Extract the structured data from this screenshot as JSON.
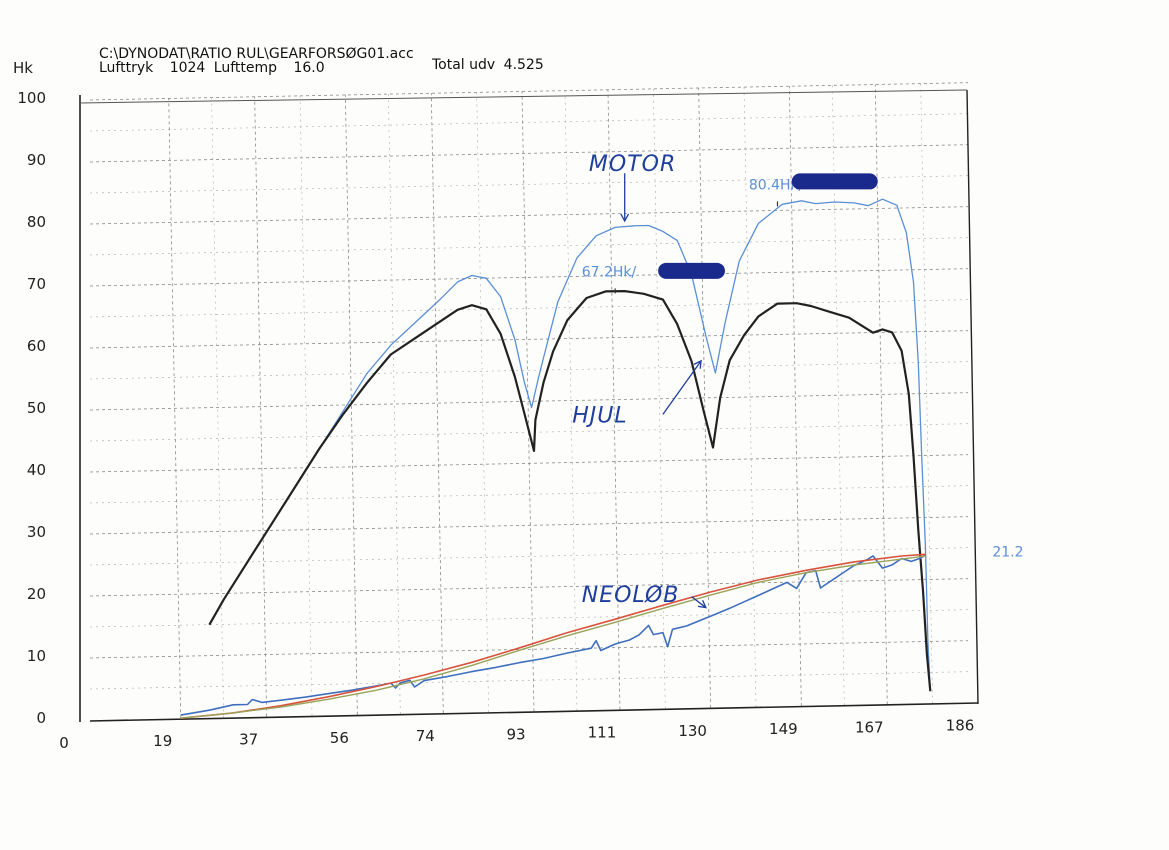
{
  "header": {
    "file_path": "C:\\DYNODAT\\RATIO RUL\\GEARFORSØG01.acc",
    "lufttryk_label": "Lufttryk",
    "lufttryk_value": "1024",
    "lufttemp_label": "Lufttemp",
    "lufttemp_value": "16.0",
    "total_udv_label": "Total udv",
    "total_udv_value": "4.525"
  },
  "chart_data": {
    "type": "line",
    "title": "",
    "xlabel": "",
    "ylabel": "Hk",
    "xlim": [
      0,
      186
    ],
    "ylim": [
      0,
      100
    ],
    "x_ticks": [
      "0",
      "19",
      "37",
      "56",
      "74",
      "93",
      "111",
      "130",
      "149",
      "167",
      "186"
    ],
    "y_ticks": [
      "0",
      "10",
      "20",
      "30",
      "40",
      "50",
      "60",
      "70",
      "80",
      "90",
      "100"
    ],
    "grid": true,
    "colors": {
      "motor": "#5b8fd6",
      "hjul": "#222222",
      "loss": "#3f6fbf",
      "smooth_red": "#d9533c",
      "smooth_olive": "#9aa35a",
      "handwriting": "#1f3f9e",
      "redaction": "#1a2a8c"
    },
    "series": [
      {
        "id": "motor",
        "points": [
          [
            25,
            15
          ],
          [
            28,
            19
          ],
          [
            33,
            25
          ],
          [
            38,
            31
          ],
          [
            43,
            37
          ],
          [
            48,
            43
          ],
          [
            53,
            49
          ],
          [
            58,
            55
          ],
          [
            63,
            59.5
          ],
          [
            68,
            63
          ],
          [
            73,
            66.5
          ],
          [
            77,
            69.5
          ],
          [
            80,
            70.5
          ],
          [
            83,
            70
          ],
          [
            86,
            67
          ],
          [
            89,
            60
          ],
          [
            91,
            53
          ],
          [
            92.5,
            49
          ],
          [
            94,
            54
          ],
          [
            96,
            60
          ],
          [
            98,
            66
          ],
          [
            102,
            73
          ],
          [
            106,
            76.5
          ],
          [
            110,
            77.8
          ],
          [
            114,
            78
          ],
          [
            117,
            78
          ],
          [
            120,
            77
          ],
          [
            123,
            75.5
          ],
          [
            126,
            70
          ],
          [
            129,
            60
          ],
          [
            131,
            54
          ],
          [
            133,
            62
          ],
          [
            136,
            72
          ],
          [
            140,
            78
          ],
          [
            145,
            81
          ],
          [
            149,
            81.5
          ],
          [
            152,
            81
          ],
          [
            156,
            81.2
          ],
          [
            160,
            81
          ],
          [
            163,
            80.5
          ],
          [
            166,
            81.5
          ],
          [
            169,
            80.5
          ],
          [
            171,
            76
          ],
          [
            172.5,
            68
          ],
          [
            173.5,
            55
          ],
          [
            174.2,
            40
          ],
          [
            175,
            25
          ],
          [
            175.5,
            10
          ],
          [
            176,
            2
          ]
        ]
      },
      {
        "id": "hjul",
        "points": [
          [
            25,
            15
          ],
          [
            28,
            19
          ],
          [
            33,
            25
          ],
          [
            38,
            31
          ],
          [
            43,
            37
          ],
          [
            48,
            43
          ],
          [
            53,
            48.5
          ],
          [
            58,
            53.5
          ],
          [
            63,
            58
          ],
          [
            68,
            60.5
          ],
          [
            73,
            63
          ],
          [
            77,
            65
          ],
          [
            80,
            65.7
          ],
          [
            83,
            65
          ],
          [
            86,
            61
          ],
          [
            89,
            54
          ],
          [
            91,
            48
          ],
          [
            93,
            42
          ],
          [
            93.3,
            47
          ],
          [
            95,
            53
          ],
          [
            97,
            58
          ],
          [
            100,
            63
          ],
          [
            104,
            66.5
          ],
          [
            108,
            67.5
          ],
          [
            112,
            67.5
          ],
          [
            116,
            67
          ],
          [
            120,
            66
          ],
          [
            123,
            62
          ],
          [
            126,
            56
          ],
          [
            128.5,
            48
          ],
          [
            130.5,
            42
          ],
          [
            132,
            50
          ],
          [
            134,
            56
          ],
          [
            137,
            60
          ],
          [
            140,
            63
          ],
          [
            144,
            65
          ],
          [
            148,
            65
          ],
          [
            151,
            64.5
          ],
          [
            155,
            63.5
          ],
          [
            159,
            62.5
          ],
          [
            162,
            61
          ],
          [
            164,
            60
          ],
          [
            166,
            60.5
          ],
          [
            168,
            60
          ],
          [
            170,
            57
          ],
          [
            171.5,
            50
          ],
          [
            172.5,
            40
          ],
          [
            173.5,
            28
          ],
          [
            174.5,
            18
          ],
          [
            175.3,
            8
          ],
          [
            176,
            2
          ]
        ]
      },
      {
        "id": "loss",
        "points": [
          [
            19,
            0.5
          ],
          [
            25,
            1.2
          ],
          [
            30,
            2
          ],
          [
            33,
            2
          ],
          [
            34,
            2.8
          ],
          [
            36,
            2.3
          ],
          [
            40,
            2.6
          ],
          [
            45,
            3
          ],
          [
            50,
            3.5
          ],
          [
            55,
            4
          ],
          [
            60,
            4.6
          ],
          [
            63,
            5
          ],
          [
            64,
            4.2
          ],
          [
            65,
            5
          ],
          [
            67,
            5.4
          ],
          [
            68,
            4.3
          ],
          [
            70,
            5.3
          ],
          [
            75,
            5.9
          ],
          [
            80,
            6.6
          ],
          [
            85,
            7.2
          ],
          [
            90,
            7.9
          ],
          [
            95,
            8.5
          ],
          [
            100,
            9.3
          ],
          [
            105,
            10
          ],
          [
            106,
            11.2
          ],
          [
            107,
            9.6
          ],
          [
            110,
            10.6
          ],
          [
            113,
            11.2
          ],
          [
            115,
            12
          ],
          [
            117,
            13.5
          ],
          [
            118,
            12
          ],
          [
            120,
            12.3
          ],
          [
            121,
            10
          ],
          [
            122,
            12.8
          ],
          [
            125,
            13.3
          ],
          [
            128,
            14.2
          ],
          [
            131,
            15.1
          ],
          [
            134,
            16
          ],
          [
            137,
            17
          ],
          [
            140,
            18
          ],
          [
            143,
            19
          ],
          [
            146,
            20
          ],
          [
            148,
            19
          ],
          [
            150,
            21.5
          ],
          [
            152,
            21.8
          ],
          [
            153,
            19
          ],
          [
            155,
            20
          ],
          [
            158,
            21.5
          ],
          [
            160,
            22.5
          ],
          [
            163,
            23.5
          ],
          [
            164,
            24
          ],
          [
            166,
            22
          ],
          [
            168,
            22.5
          ],
          [
            170,
            23.5
          ],
          [
            172,
            23
          ],
          [
            174,
            23.5
          ],
          [
            175,
            24
          ]
        ]
      },
      {
        "id": "smooth_red",
        "points": [
          [
            19,
            0
          ],
          [
            30,
            0.7
          ],
          [
            40,
            1.7
          ],
          [
            50,
            3
          ],
          [
            60,
            4.5
          ],
          [
            70,
            6.2
          ],
          [
            80,
            8.1
          ],
          [
            90,
            10.3
          ],
          [
            100,
            12.6
          ],
          [
            110,
            14.6
          ],
          [
            120,
            16.7
          ],
          [
            130,
            18.7
          ],
          [
            140,
            20.5
          ],
          [
            150,
            21.9
          ],
          [
            160,
            23.1
          ],
          [
            170,
            23.9
          ],
          [
            175,
            24.1
          ]
        ]
      },
      {
        "id": "smooth_olive",
        "points": [
          [
            19,
            0
          ],
          [
            30,
            0.7
          ],
          [
            40,
            1.5
          ],
          [
            50,
            2.6
          ],
          [
            60,
            3.9
          ],
          [
            70,
            5.6
          ],
          [
            80,
            7.6
          ],
          [
            90,
            9.9
          ],
          [
            100,
            12.1
          ],
          [
            110,
            14.1
          ],
          [
            120,
            16.2
          ],
          [
            130,
            18.2
          ],
          [
            140,
            20.1
          ],
          [
            150,
            21.5
          ],
          [
            160,
            22.6
          ],
          [
            170,
            23.4
          ],
          [
            175,
            23.8
          ]
        ]
      }
    ],
    "annotations": [
      {
        "text": "80.4Hk/",
        "x": 138,
        "y": 83.5,
        "tick_x": 144
      },
      {
        "text": "67.2Hk/",
        "x": 103,
        "y": 70,
        "tick_x": 110
      },
      {
        "text": "21.2",
        "x": 189,
        "y": 23.5
      }
    ],
    "redactions": [
      {
        "x1": 147,
        "x2": 165,
        "y": 84.5
      },
      {
        "x1": 119,
        "x2": 133,
        "y": 70.5
      }
    ],
    "handwritten_labels": [
      {
        "text": "MOTOR",
        "x": 104.5,
        "y": 87,
        "arrow": [
          [
            112,
            86.5
          ],
          [
            112,
            78.8
          ]
        ]
      },
      {
        "text": "HJUL",
        "x": 101,
        "y": 46.5,
        "arrow": [
          [
            120,
            47.5
          ],
          [
            128,
            56
          ]
        ]
      },
      {
        "text": "NEOLØB",
        "x": 103,
        "y": 17.5,
        "arrow": [
          [
            126,
            18
          ],
          [
            129,
            16.2
          ]
        ]
      }
    ]
  }
}
